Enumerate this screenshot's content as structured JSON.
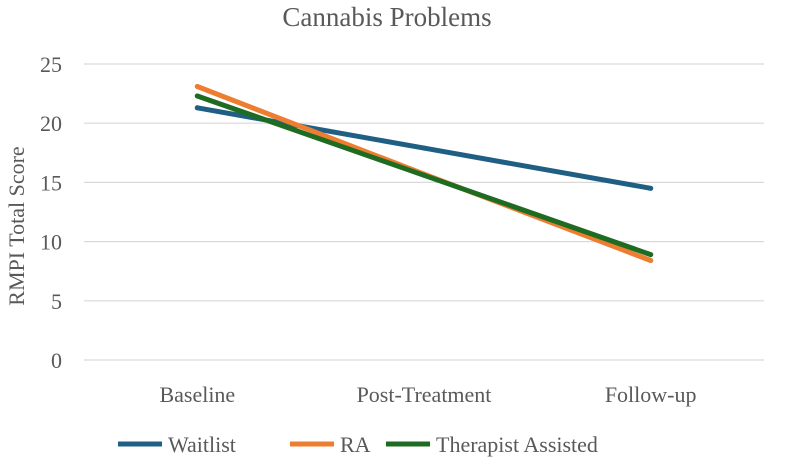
{
  "chart_data": {
    "type": "line",
    "title": "Cannabis Problems",
    "xlabel": "",
    "ylabel": "RMPI Total Score",
    "categories": [
      "Baseline",
      "Post-Treatment",
      "Follow-up"
    ],
    "ylim": [
      0,
      25
    ],
    "yticks": [
      0,
      5,
      10,
      15,
      20,
      25
    ],
    "grid": true,
    "legend_position": "bottom",
    "series": [
      {
        "name": "Waitlist",
        "color": "#1f5f84",
        "values": [
          21.3,
          17.9,
          14.5
        ]
      },
      {
        "name": "RA",
        "color": "#ed7d31",
        "values": [
          23.1,
          15.7,
          8.4
        ]
      },
      {
        "name": "Therapist Assisted",
        "color": "#1e6b22",
        "values": [
          22.3,
          15.6,
          8.9
        ]
      }
    ]
  }
}
